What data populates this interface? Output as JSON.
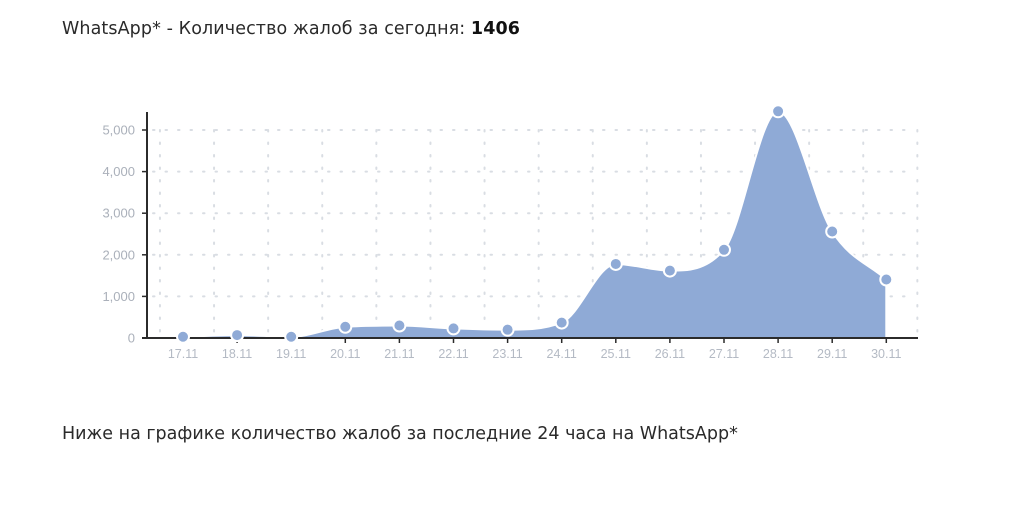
{
  "header": {
    "prefix": "WhatsApp* - Количество жалоб за сегодня: ",
    "count": "1406"
  },
  "footer": {
    "text": "Ниже на графике количество жалоб за последние 24 часа на WhatsApp*"
  },
  "colors": {
    "area_fill": "#8faad6",
    "area_stroke": "#ffffff",
    "marker_fill": "#8faad6",
    "marker_stroke": "#ffffff",
    "axis": "#2b2b2b",
    "grid_dots": "#d9dde3"
  },
  "chart_data": {
    "type": "area",
    "categories": [
      "17.11",
      "18.11",
      "19.11",
      "20.11",
      "21.11",
      "22.11",
      "23.11",
      "24.11",
      "25.11",
      "26.11",
      "27.11",
      "28.11",
      "29.11",
      "30.11"
    ],
    "values": [
      30,
      70,
      30,
      270,
      300,
      230,
      200,
      370,
      1780,
      1620,
      2120,
      5450,
      2560,
      1406
    ],
    "ylim": [
      0,
      5000
    ],
    "yticks": [
      0,
      1000,
      2000,
      3000,
      4000,
      5000
    ],
    "ytick_labels": [
      "0",
      "1,000",
      "2,000",
      "3,000",
      "4,000",
      "5,000"
    ],
    "smooth": true,
    "markers": true,
    "grid": "dotted",
    "legend": "none"
  }
}
